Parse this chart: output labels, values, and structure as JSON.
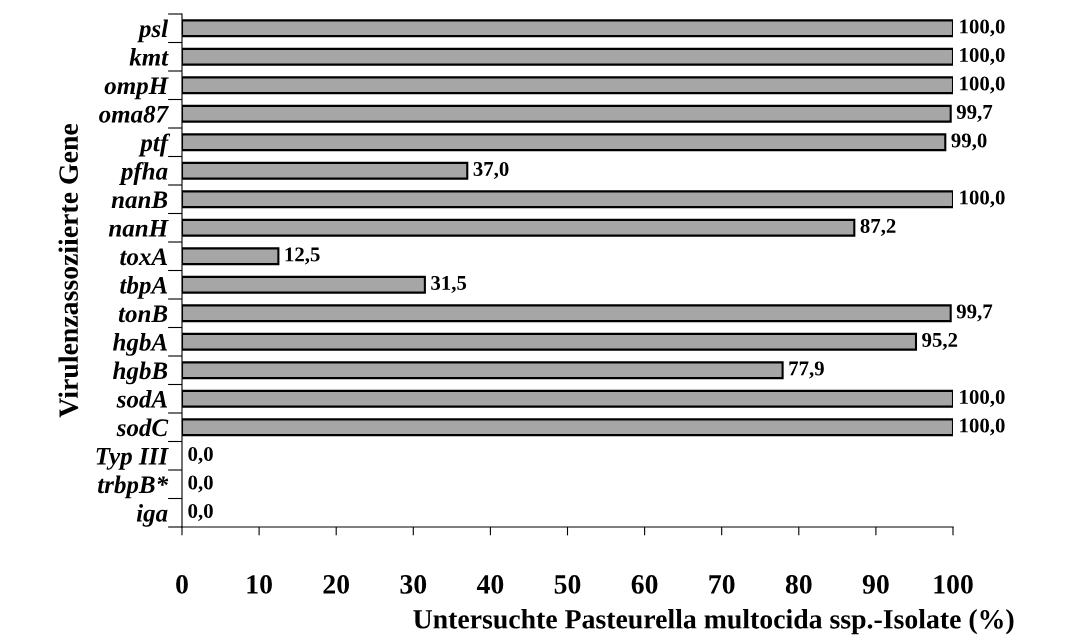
{
  "chart_data": {
    "type": "bar",
    "orientation": "horizontal",
    "ylabel": "Virulenzassoziierte Gene",
    "xlabel": "Untersuchte Pasteurella multocida ssp.-Isolate (%)",
    "categories": [
      "psl",
      "kmt",
      "ompH",
      "oma87",
      "ptf",
      "pfha",
      "nanB",
      "nanH",
      "toxA",
      "tbpA",
      "tonB",
      "hgbA",
      "hgbB",
      "sodA",
      "sodC",
      "Typ III",
      "trbpB*",
      "iga"
    ],
    "values": [
      100.0,
      100.0,
      100.0,
      99.7,
      99.0,
      37.0,
      100.0,
      87.2,
      12.5,
      31.5,
      99.7,
      95.2,
      77.9,
      100.0,
      100.0,
      0.0,
      0.0,
      0.0
    ],
    "color": "#a6a6a6",
    "data_labels": true,
    "value_labels": [
      "100,0",
      "100,0",
      "100,0",
      "99,7",
      "99,0",
      "37,0",
      "100,0",
      "87,2",
      "12,5",
      "31,5",
      "99,7",
      "95,2",
      "77,9",
      "100,0",
      "100,0",
      "0,0",
      "0,0",
      "0,0"
    ],
    "xlim": [
      0,
      100
    ],
    "xticks": [
      0,
      10,
      20,
      30,
      40,
      50,
      60,
      70,
      80,
      90,
      100
    ],
    "grid": false,
    "legend": false
  }
}
